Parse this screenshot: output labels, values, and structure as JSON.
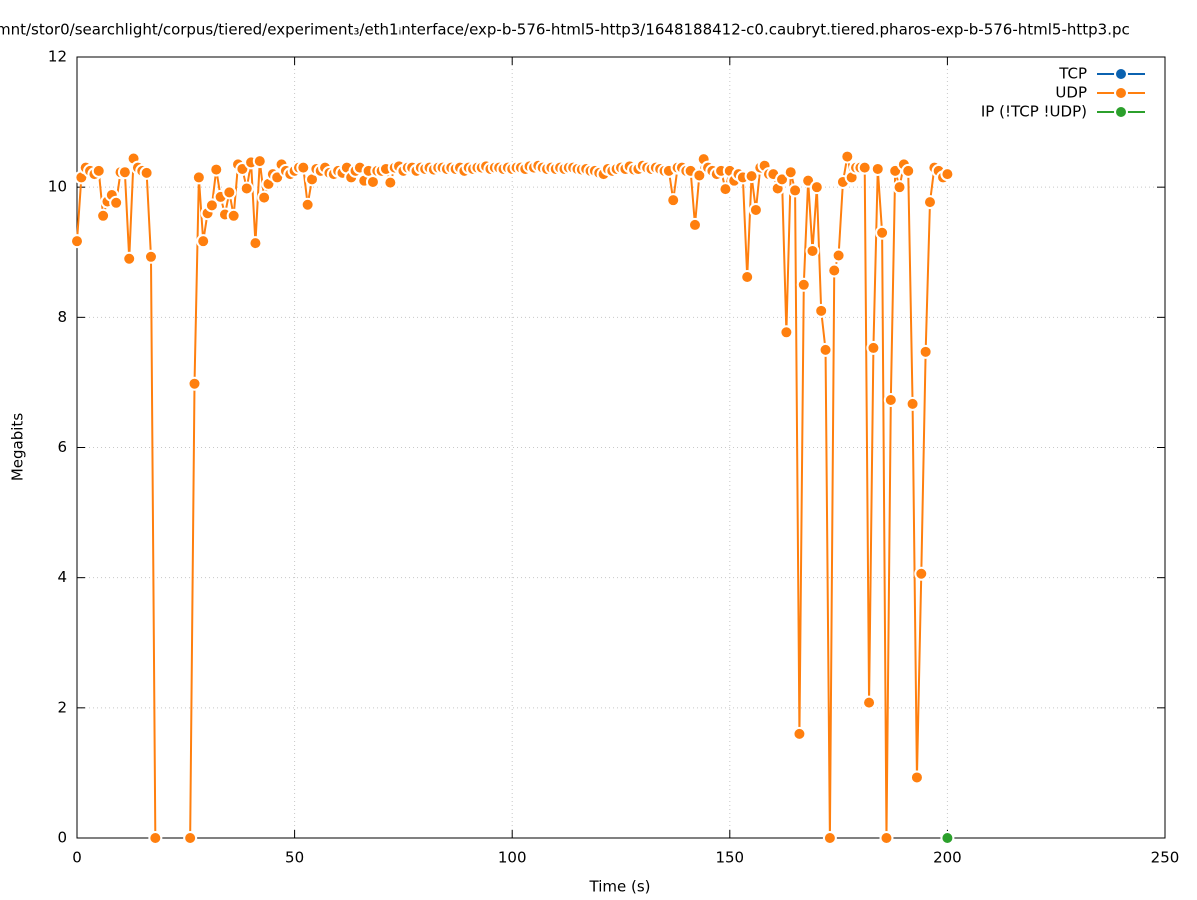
{
  "chart_data": {
    "type": "line",
    "title": "mnt/stor0/searchlight/corpus/tiered/experiment₃/eth1ᵢnterface/exp-b-576-html5-http3/1648188412-c0.caubryt.tiered.pharos-exp-b-576-html5-http3.pc",
    "xlabel": "Time (s)",
    "ylabel": "Megabits",
    "xlim": [
      0,
      250
    ],
    "xticks": [
      0,
      50,
      100,
      150,
      200,
      250
    ],
    "ylim": [
      0,
      12
    ],
    "yticks": [
      0,
      2,
      4,
      6,
      8,
      10,
      12
    ],
    "grid": true,
    "legend": "upper right",
    "series": [
      {
        "name": "TCP",
        "color": "#0b62b0",
        "x": [],
        "values": []
      },
      {
        "name": "UDP",
        "color": "#ff7f0e",
        "x": [
          0,
          1,
          2,
          3,
          4,
          5,
          6,
          7,
          8,
          9,
          10,
          11,
          12,
          13,
          14,
          15,
          16,
          17,
          18,
          19,
          20,
          21,
          22,
          23,
          24,
          25,
          26,
          27,
          28,
          29,
          30,
          31,
          32,
          33,
          34,
          35,
          36,
          37,
          38,
          39,
          40,
          41,
          42,
          43,
          44,
          45,
          46,
          47,
          48,
          49,
          50,
          51,
          52,
          53,
          54,
          55,
          56,
          57,
          58,
          59,
          60,
          61,
          62,
          63,
          64,
          65,
          66,
          67,
          68,
          69,
          70,
          71,
          72,
          73,
          74,
          75,
          76,
          77,
          78,
          79,
          80,
          81,
          82,
          83,
          84,
          85,
          86,
          87,
          88,
          89,
          90,
          91,
          92,
          93,
          94,
          95,
          96,
          97,
          98,
          99,
          100,
          101,
          102,
          103,
          104,
          105,
          106,
          107,
          108,
          109,
          110,
          111,
          112,
          113,
          114,
          115,
          116,
          117,
          118,
          119,
          120,
          121,
          122,
          123,
          124,
          125,
          126,
          127,
          128,
          129,
          130,
          131,
          132,
          133,
          134,
          135,
          136,
          137,
          138,
          139,
          140,
          141,
          142,
          143,
          144,
          145,
          146,
          147,
          148,
          149,
          150,
          151,
          152,
          153,
          154,
          155,
          156,
          157,
          158,
          159,
          160,
          161,
          162,
          163,
          164,
          165,
          166,
          167,
          168,
          169,
          170,
          171,
          172,
          173,
          174,
          175,
          176,
          177,
          178,
          179,
          180,
          181,
          182,
          183,
          184,
          185,
          186,
          187,
          188,
          189,
          190,
          191,
          192,
          193,
          194,
          195,
          196,
          197,
          198,
          199,
          200
        ],
        "values": [
          9.17,
          10.15,
          10.3,
          10.25,
          10.2,
          10.25,
          9.56,
          9.78,
          9.88,
          9.76,
          10.23,
          10.23,
          8.9,
          10.44,
          10.3,
          10.25,
          10.22,
          8.93,
          0,
          null,
          null,
          null,
          null,
          null,
          null,
          null,
          0,
          6.98,
          10.15,
          9.17,
          9.6,
          9.72,
          10.27,
          9.85,
          9.58,
          9.92,
          9.56,
          10.35,
          10.28,
          9.98,
          10.38,
          9.14,
          10.4,
          9.84,
          10.05,
          10.2,
          10.15,
          10.35,
          10.25,
          10.2,
          10.25,
          10.3,
          10.3,
          9.73,
          10.12,
          10.28,
          10.25,
          10.3,
          10.22,
          10.2,
          10.25,
          10.22,
          10.3,
          10.15,
          10.25,
          10.3,
          10.1,
          10.25,
          10.08,
          10.25,
          10.25,
          10.28,
          10.07,
          10.3,
          10.32,
          10.25,
          10.3,
          10.3,
          10.25,
          10.3,
          10.28,
          10.3,
          10.27,
          10.3,
          10.3,
          10.28,
          10.3,
          10.28,
          10.3,
          10.25,
          10.3,
          10.28,
          10.3,
          10.3,
          10.32,
          10.28,
          10.3,
          10.3,
          10.28,
          10.3,
          10.28,
          10.3,
          10.3,
          10.28,
          10.32,
          10.3,
          10.33,
          10.3,
          10.28,
          10.3,
          10.28,
          10.3,
          10.28,
          10.3,
          10.3,
          10.28,
          10.27,
          10.28,
          10.25,
          10.25,
          10.22,
          10.2,
          10.28,
          10.25,
          10.28,
          10.3,
          10.28,
          10.32,
          10.27,
          10.28,
          10.33,
          10.3,
          10.28,
          10.3,
          10.28,
          10.25,
          10.25,
          9.8,
          10.3,
          10.3,
          10.25,
          10.25,
          9.42,
          10.18,
          10.43,
          10.3,
          10.25,
          10.2,
          10.25,
          9.97,
          10.25,
          10.1,
          10.2,
          10.15,
          8.62,
          10.17,
          9.65,
          10.3,
          10.33,
          10.2,
          10.2,
          9.98,
          10.12,
          7.77,
          10.23,
          9.95,
          1.6,
          8.5,
          10.1,
          9.02,
          10.0,
          8.1,
          7.5,
          0,
          8.72,
          8.95,
          10.08,
          10.47,
          10.15,
          10.3,
          10.3,
          10.3,
          2.08,
          7.53,
          10.28,
          9.3,
          0,
          6.73,
          10.25,
          10.0,
          10.35,
          10.25,
          6.67,
          0.93,
          4.06,
          7.47,
          9.77,
          10.3,
          10.25,
          10.15,
          10.2
        ]
      },
      {
        "name": "IP (!TCP  !UDP)",
        "color": "#2ca02c",
        "x": [
          200
        ],
        "values": [
          0
        ]
      }
    ]
  }
}
